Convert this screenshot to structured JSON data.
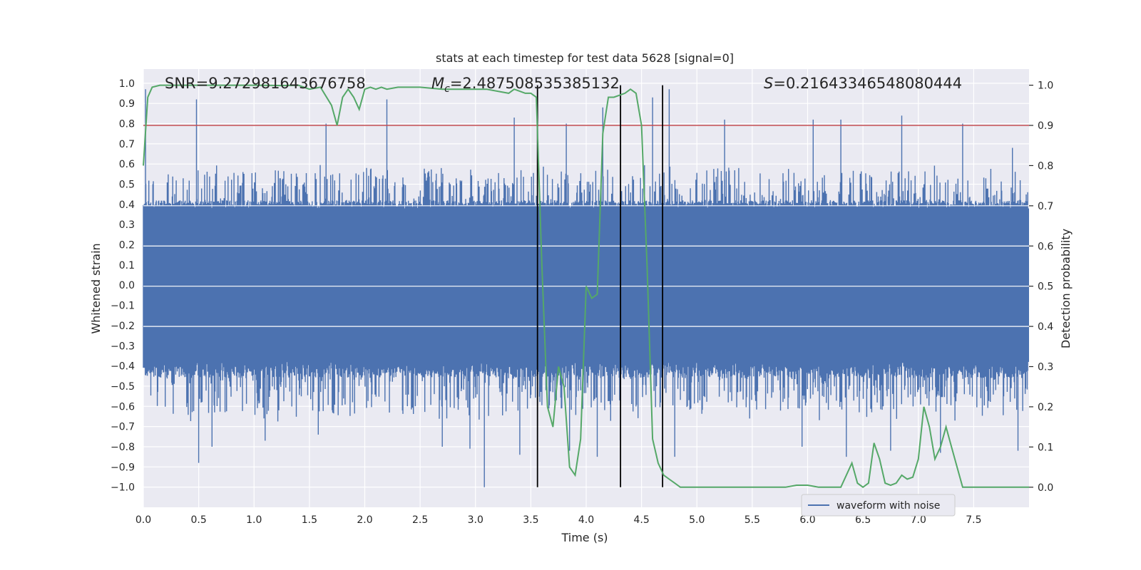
{
  "chart_data": {
    "type": "line",
    "title": "stats at each timestep for test data 5628 [signal=0]",
    "xlabel": "Time (s)",
    "ylabel": "Whitened strain",
    "y2label": "Detection probability",
    "xlim": [
      0.0,
      8.0
    ],
    "ylim": [
      -1.1,
      1.07
    ],
    "y2lim": [
      -0.05,
      1.04
    ],
    "xticks": [
      "0.0",
      "0.5",
      "1.0",
      "1.5",
      "2.0",
      "2.5",
      "3.0",
      "3.5",
      "4.0",
      "4.5",
      "5.0",
      "5.5",
      "6.0",
      "6.5",
      "7.0",
      "7.5"
    ],
    "xtick_values": [
      0.0,
      0.5,
      1.0,
      1.5,
      2.0,
      2.5,
      3.0,
      3.5,
      4.0,
      4.5,
      5.0,
      5.5,
      6.0,
      6.5,
      7.0,
      7.5
    ],
    "yticks": [
      "1.0",
      "0.9",
      "0.8",
      "0.7",
      "0.6",
      "0.5",
      "0.4",
      "0.3",
      "0.2",
      "0.1",
      "0.0",
      "−0.1",
      "−0.2",
      "−0.3",
      "−0.4",
      "−0.5",
      "−0.6",
      "−0.7",
      "−0.8",
      "−0.9",
      "−1.0"
    ],
    "ytick_values": [
      1.0,
      0.9,
      0.8,
      0.7,
      0.6,
      0.5,
      0.4,
      0.3,
      0.2,
      0.1,
      0.0,
      -0.1,
      -0.2,
      -0.3,
      -0.4,
      -0.5,
      -0.6,
      -0.7,
      -0.8,
      -0.9,
      -1.0
    ],
    "y2ticks": [
      "1.0",
      "0.9",
      "0.8",
      "0.7",
      "0.6",
      "0.5",
      "0.4",
      "0.3",
      "0.2",
      "0.1",
      "0.0"
    ],
    "y2tick_values": [
      1.0,
      0.9,
      0.8,
      0.7,
      0.6,
      0.5,
      0.4,
      0.3,
      0.2,
      0.1,
      0.0
    ],
    "annotations": {
      "snr": "SNR=9.272981643676758",
      "mc_symbol": "M",
      "mc_sub": "c",
      "mc_value": "=2.487508535385132",
      "s_symbol": "S",
      "s_value": "=0.21643346548080444"
    },
    "threshold_prob": 0.9,
    "vertical_lines": [
      3.56,
      4.31,
      4.69
    ],
    "legend": {
      "label": "waveform with noise",
      "placement": "lower right"
    },
    "waveform": {
      "name": "waveform with noise",
      "core_abs": 0.38,
      "peaks_pos": [
        [
          0.02,
          0.97
        ],
        [
          0.48,
          0.92
        ],
        [
          1.65,
          0.8
        ],
        [
          2.2,
          0.92
        ],
        [
          3.35,
          0.83
        ],
        [
          3.82,
          0.8
        ],
        [
          4.15,
          0.88
        ],
        [
          4.6,
          0.93
        ],
        [
          4.75,
          0.97
        ],
        [
          5.25,
          0.82
        ],
        [
          6.05,
          0.82
        ],
        [
          6.3,
          0.82
        ],
        [
          6.85,
          0.84
        ],
        [
          7.4,
          0.8
        ],
        [
          7.85,
          0.68
        ]
      ],
      "peaks_neg": [
        [
          0.5,
          -0.88
        ],
        [
          0.62,
          -0.8
        ],
        [
          1.1,
          -0.77
        ],
        [
          1.58,
          -0.74
        ],
        [
          2.7,
          -0.8
        ],
        [
          2.95,
          -0.81
        ],
        [
          3.08,
          -1.0
        ],
        [
          3.4,
          -0.84
        ],
        [
          3.85,
          -0.82
        ],
        [
          4.1,
          -0.85
        ],
        [
          4.8,
          -0.85
        ],
        [
          5.95,
          -0.8
        ],
        [
          6.35,
          -0.85
        ],
        [
          6.75,
          -0.82
        ],
        [
          7.2,
          -0.83
        ],
        [
          7.9,
          -0.82
        ]
      ]
    },
    "series": [
      {
        "name": "detection probability",
        "color": "#55a868",
        "x": [
          0.0,
          0.04,
          0.08,
          0.15,
          0.25,
          0.5,
          0.75,
          1.0,
          1.25,
          1.4,
          1.5,
          1.6,
          1.7,
          1.75,
          1.8,
          1.85,
          1.9,
          1.95,
          2.0,
          2.05,
          2.1,
          2.15,
          2.2,
          2.3,
          2.5,
          2.7,
          2.9,
          3.1,
          3.3,
          3.35,
          3.45,
          3.5,
          3.55,
          3.6,
          3.65,
          3.7,
          3.75,
          3.8,
          3.85,
          3.9,
          3.95,
          4.0,
          4.05,
          4.1,
          4.15,
          4.2,
          4.25,
          4.3,
          4.35,
          4.4,
          4.45,
          4.5,
          4.55,
          4.6,
          4.65,
          4.7,
          4.75,
          4.8,
          4.85,
          4.9,
          4.95,
          5.0,
          5.05,
          5.1,
          5.2,
          5.5,
          5.6,
          5.7,
          5.8,
          5.9,
          6.0,
          6.1,
          6.2,
          6.3,
          6.4,
          6.45,
          6.5,
          6.55,
          6.6,
          6.65,
          6.7,
          6.75,
          6.8,
          6.85,
          6.9,
          6.95,
          7.0,
          7.05,
          7.1,
          7.15,
          7.2,
          7.25,
          7.3,
          7.35,
          7.4,
          7.45,
          7.5,
          7.55,
          7.6,
          7.7,
          7.8,
          7.9,
          8.0
        ],
        "y": [
          0.8,
          0.97,
          0.995,
          1.0,
          1.0,
          1.0,
          1.0,
          1.0,
          0.999,
          1.0,
          0.99,
          0.995,
          0.95,
          0.9,
          0.97,
          0.99,
          0.97,
          0.94,
          0.99,
          0.995,
          0.99,
          0.995,
          0.99,
          0.995,
          0.995,
          0.99,
          0.99,
          0.99,
          0.98,
          0.99,
          0.98,
          0.98,
          0.97,
          0.55,
          0.2,
          0.15,
          0.3,
          0.25,
          0.05,
          0.03,
          0.12,
          0.5,
          0.47,
          0.48,
          0.88,
          0.97,
          0.97,
          0.975,
          0.98,
          0.99,
          0.98,
          0.9,
          0.55,
          0.12,
          0.06,
          0.03,
          0.02,
          0.01,
          0.0,
          0.0,
          0.0,
          0.0,
          0.0,
          0.0,
          0.0,
          0.0,
          0.0,
          0.0,
          0.0,
          0.005,
          0.005,
          0.0,
          0.0,
          0.0,
          0.06,
          0.01,
          0.0,
          0.01,
          0.11,
          0.07,
          0.01,
          0.005,
          0.01,
          0.03,
          0.02,
          0.025,
          0.07,
          0.2,
          0.15,
          0.07,
          0.1,
          0.15,
          0.1,
          0.05,
          0.0,
          0.0,
          0.0,
          0.0,
          0.0,
          0.0,
          0.0,
          0.0,
          0.0
        ]
      }
    ],
    "colors": {
      "waveform": "#4c72b0",
      "probability": "#55a868",
      "threshold": "#c44e52",
      "vlines": "#000000",
      "background": "#eaeaf2",
      "grid": "#ffffff"
    }
  }
}
